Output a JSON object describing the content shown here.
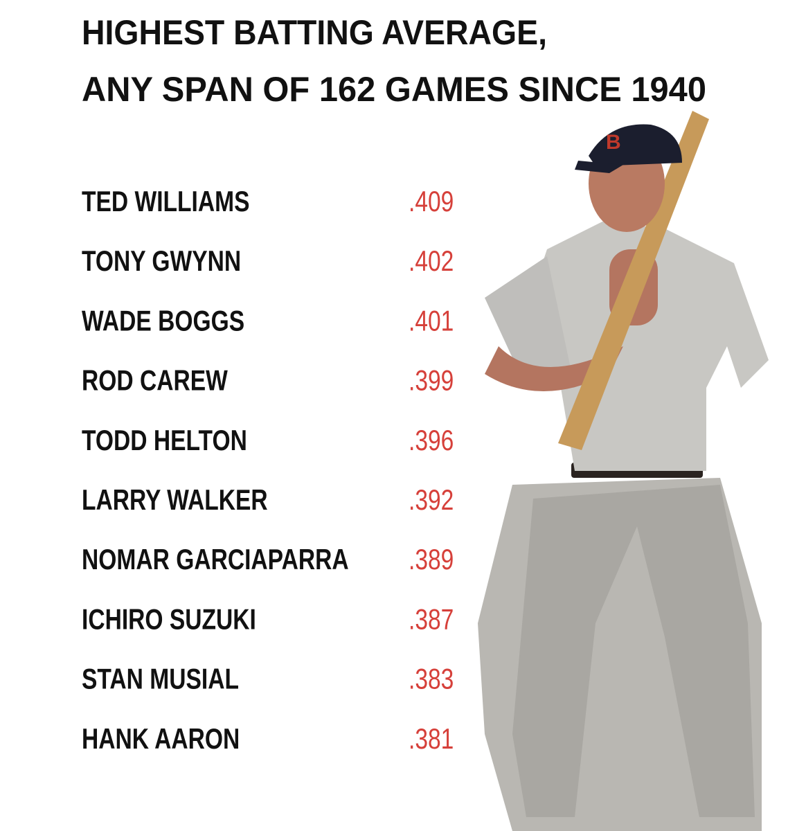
{
  "title": {
    "line1": "HIGHEST BATTING AVERAGE,",
    "line2": "ANY SPAN OF 162 GAMES SINCE 1940"
  },
  "rows": [
    {
      "name": "TED WILLIAMS",
      "average": ".409"
    },
    {
      "name": "TONY GWYNN",
      "average": ".402"
    },
    {
      "name": "WADE BOGGS",
      "average": ".401"
    },
    {
      "name": "ROD CAREW",
      "average": ".399"
    },
    {
      "name": "TODD HELTON",
      "average": ".396"
    },
    {
      "name": "LARRY WALKER",
      "average": ".392"
    },
    {
      "name": "NOMAR GARCIAPARRA",
      "average": ".389"
    },
    {
      "name": "ICHIRO SUZUKI",
      "average": ".387"
    },
    {
      "name": "STAN MUSIAL",
      "average": ".383"
    },
    {
      "name": "HANK AARON",
      "average": ".381"
    }
  ]
}
